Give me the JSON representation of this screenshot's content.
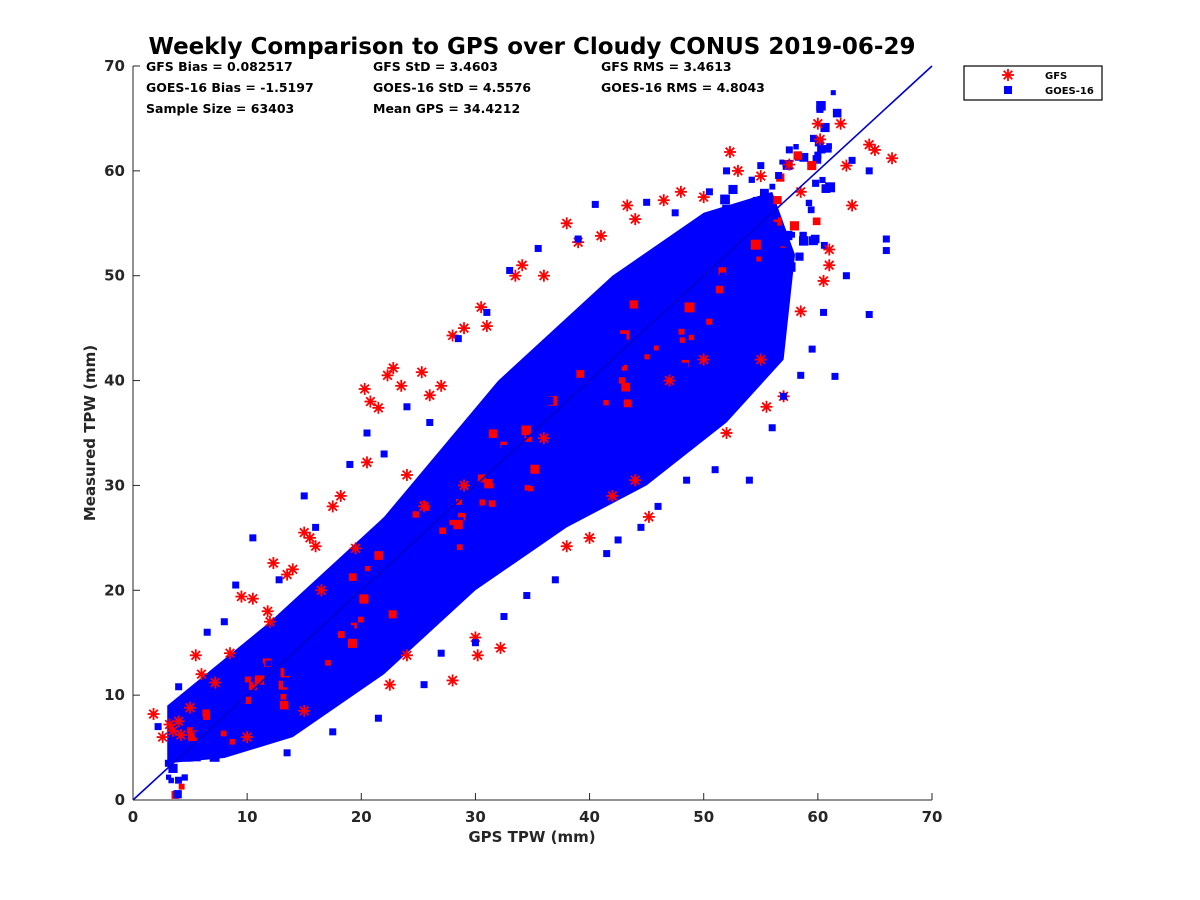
{
  "chart_data": {
    "type": "scatter",
    "title": "Weekly Comparison to GPS over Cloudy CONUS 2019-06-29",
    "xlabel": "GPS TPW (mm)",
    "ylabel": "Measured TPW (mm)",
    "xlim": [
      0,
      70
    ],
    "ylim": [
      0,
      70
    ],
    "xticks": [
      "0",
      "10",
      "20",
      "30",
      "40",
      "50",
      "60",
      "70"
    ],
    "yticks": [
      "0",
      "10",
      "20",
      "30",
      "40",
      "50",
      "60",
      "70"
    ],
    "reference_line": {
      "x": [
        0,
        70
      ],
      "y": [
        0,
        70
      ],
      "color": "#0000cc"
    },
    "grid": false,
    "legend_position": "outside-top-right",
    "stats": [
      {
        "text": "GFS Bias = 0.082517"
      },
      {
        "text": "GFS StD = 3.4603"
      },
      {
        "text": "GFS RMS = 3.4613"
      },
      {
        "text": "GOES-16 Bias = -1.5197"
      },
      {
        "text": "GOES-16 StD = 4.5576"
      },
      {
        "text": "GOES-16 RMS = 4.8043"
      },
      {
        "text": "Sample Size = 63403"
      },
      {
        "text": "Mean GPS = 34.4212"
      }
    ],
    "series": [
      {
        "name": "GFS",
        "marker": "asterisk",
        "color": "#ff0000",
        "points": [
          [
            1.8,
            8.2
          ],
          [
            2.6,
            6.0
          ],
          [
            3.2,
            7.2
          ],
          [
            3.5,
            6.6
          ],
          [
            4.0,
            7.5
          ],
          [
            4.2,
            6.2
          ],
          [
            5.0,
            8.8
          ],
          [
            5.5,
            13.8
          ],
          [
            6.0,
            12.0
          ],
          [
            7.2,
            11.2
          ],
          [
            8.5,
            14.0
          ],
          [
            9.5,
            19.4
          ],
          [
            10.5,
            19.2
          ],
          [
            11.8,
            18.0
          ],
          [
            12.3,
            22.6
          ],
          [
            13.5,
            21.5
          ],
          [
            15.5,
            25.0
          ],
          [
            16.0,
            24.2
          ],
          [
            17.5,
            28.0
          ],
          [
            18.2,
            29.0
          ],
          [
            20.3,
            39.2
          ],
          [
            20.8,
            38.0
          ],
          [
            21.5,
            37.4
          ],
          [
            22.3,
            40.5
          ],
          [
            22.8,
            41.2
          ],
          [
            23.5,
            39.5
          ],
          [
            25.3,
            40.8
          ],
          [
            26.0,
            38.6
          ],
          [
            27.0,
            39.5
          ],
          [
            28.0,
            44.3
          ],
          [
            29.0,
            45.0
          ],
          [
            30.5,
            47.0
          ],
          [
            31.0,
            45.2
          ],
          [
            33.5,
            50.0
          ],
          [
            34.1,
            51.0
          ],
          [
            36.0,
            50.0
          ],
          [
            38.0,
            55.0
          ],
          [
            39.0,
            53.2
          ],
          [
            41.0,
            53.8
          ],
          [
            43.3,
            56.7
          ],
          [
            44.0,
            55.4
          ],
          [
            46.5,
            57.2
          ],
          [
            48.0,
            58.0
          ],
          [
            50.0,
            57.5
          ],
          [
            52.3,
            61.8
          ],
          [
            53.0,
            60.0
          ],
          [
            55.0,
            59.5
          ],
          [
            57.5,
            60.6
          ],
          [
            58.5,
            58.0
          ],
          [
            60.0,
            64.5
          ],
          [
            60.2,
            63.0
          ],
          [
            62.0,
            64.5
          ],
          [
            62.5,
            60.5
          ],
          [
            63.0,
            56.7
          ],
          [
            64.5,
            62.5
          ],
          [
            65.0,
            62.0
          ],
          [
            66.5,
            61.2
          ],
          [
            61.0,
            52.5
          ],
          [
            60.5,
            49.5
          ],
          [
            58.5,
            46.6
          ],
          [
            57.0,
            38.5
          ],
          [
            55.5,
            37.5
          ],
          [
            52.0,
            35.0
          ],
          [
            45.2,
            27.0
          ],
          [
            42.0,
            29.0
          ],
          [
            40.0,
            25.0
          ],
          [
            38.0,
            24.2
          ],
          [
            32.2,
            14.5
          ],
          [
            30.2,
            13.8
          ],
          [
            28.0,
            11.4
          ],
          [
            24.0,
            13.8
          ],
          [
            22.5,
            11.0
          ],
          [
            15.0,
            8.5
          ],
          [
            10.0,
            6.0
          ],
          [
            14.0,
            22.0
          ],
          [
            15.0,
            25.5
          ],
          [
            19.5,
            24.0
          ],
          [
            12.0,
            17.0
          ],
          [
            16.5,
            20.0
          ],
          [
            30.0,
            15.5
          ],
          [
            20.5,
            32.2
          ],
          [
            24.0,
            31.0
          ],
          [
            36.0,
            34.5
          ],
          [
            47.0,
            40.0
          ],
          [
            50.0,
            42.0
          ],
          [
            25.5,
            28.0
          ],
          [
            29.0,
            30.0
          ],
          [
            44.0,
            30.5
          ],
          [
            55.0,
            42.0
          ],
          [
            61.0,
            51.0
          ]
        ]
      },
      {
        "name": "GOES-16",
        "marker": "square",
        "color": "#0000ff",
        "points": [
          [
            2.2,
            7.0
          ],
          [
            3.1,
            3.5
          ],
          [
            4.0,
            10.8
          ],
          [
            5.0,
            4.0
          ],
          [
            6.5,
            16.0
          ],
          [
            8.0,
            17.0
          ],
          [
            9.0,
            20.5
          ],
          [
            10.5,
            25.0
          ],
          [
            12.8,
            21.0
          ],
          [
            13.5,
            4.5
          ],
          [
            15.0,
            29.0
          ],
          [
            16.0,
            26.0
          ],
          [
            17.5,
            6.5
          ],
          [
            19.0,
            32.0
          ],
          [
            20.5,
            35.0
          ],
          [
            21.5,
            7.8
          ],
          [
            22.0,
            33.0
          ],
          [
            24.0,
            37.5
          ],
          [
            25.5,
            11.0
          ],
          [
            26.0,
            36.0
          ],
          [
            27.0,
            14.0
          ],
          [
            28.5,
            44.0
          ],
          [
            30.0,
            15.0
          ],
          [
            31.0,
            46.5
          ],
          [
            32.5,
            17.5
          ],
          [
            33.0,
            50.5
          ],
          [
            34.5,
            19.5
          ],
          [
            35.5,
            52.6
          ],
          [
            37.0,
            21.0
          ],
          [
            39.0,
            53.5
          ],
          [
            40.5,
            56.8
          ],
          [
            41.5,
            23.5
          ],
          [
            42.5,
            24.8
          ],
          [
            44.5,
            26.0
          ],
          [
            45.0,
            57.0
          ],
          [
            46.0,
            28.0
          ],
          [
            47.5,
            56.0
          ],
          [
            48.5,
            30.5
          ],
          [
            50.5,
            58.0
          ],
          [
            51.0,
            31.5
          ],
          [
            52.0,
            60.0
          ],
          [
            54.0,
            30.5
          ],
          [
            55.0,
            60.5
          ],
          [
            56.0,
            35.5
          ],
          [
            57.0,
            38.5
          ],
          [
            58.5,
            40.5
          ],
          [
            59.5,
            43.0
          ],
          [
            60.5,
            46.5
          ],
          [
            61.5,
            40.4
          ],
          [
            62.5,
            50.0
          ],
          [
            63.0,
            61.0
          ],
          [
            64.5,
            46.3
          ],
          [
            64.5,
            60.0
          ],
          [
            66.0,
            53.5
          ],
          [
            66.0,
            52.4
          ],
          [
            60.0,
            61.5
          ],
          [
            57.5,
            62.0
          ],
          [
            53.0,
            51.0
          ],
          [
            48.0,
            50.0
          ],
          [
            45.0,
            36.0
          ],
          [
            42.0,
            47.0
          ],
          [
            40.0,
            44.0
          ],
          [
            38.0,
            33.0
          ],
          [
            36.0,
            40.0
          ],
          [
            34.0,
            30.0
          ],
          [
            30.0,
            34.0
          ],
          [
            28.0,
            24.0
          ],
          [
            25.0,
            30.0
          ],
          [
            22.0,
            20.0
          ],
          [
            18.0,
            22.0
          ],
          [
            16.0,
            12.0
          ],
          [
            14.0,
            16.0
          ],
          [
            11.0,
            8.0
          ],
          [
            9.0,
            12.0
          ],
          [
            7.0,
            6.0
          ]
        ]
      }
    ]
  }
}
